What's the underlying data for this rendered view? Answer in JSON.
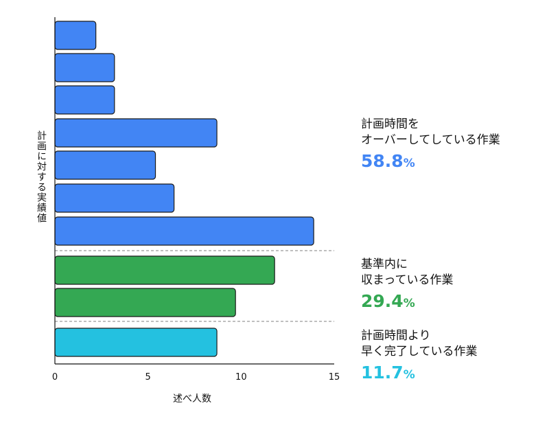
{
  "chart_data": {
    "type": "bar",
    "orientation": "horizontal",
    "xlabel": "述べ人数",
    "ylabel": "計画に対する実績値",
    "xlim": [
      0,
      15
    ],
    "xticks": [
      "0",
      "5",
      "10",
      "15"
    ],
    "grid": false,
    "bars": [
      {
        "value": 2.2,
        "group": "over"
      },
      {
        "value": 3.2,
        "group": "over"
      },
      {
        "value": 3.2,
        "group": "over"
      },
      {
        "value": 8.7,
        "group": "over"
      },
      {
        "value": 5.4,
        "group": "over"
      },
      {
        "value": 6.4,
        "group": "over"
      },
      {
        "value": 13.9,
        "group": "over"
      },
      {
        "value": 11.8,
        "group": "within"
      },
      {
        "value": 9.7,
        "group": "within"
      },
      {
        "value": 8.7,
        "group": "early"
      }
    ],
    "groups": [
      {
        "key": "over",
        "color": "#4285f4",
        "label_lines": [
          "計画時間を",
          "オーバーしてしている作業"
        ],
        "percent": "58.8",
        "percent_sign": "%"
      },
      {
        "key": "within",
        "color": "#34a853",
        "label_lines": [
          "基準内に",
          "収まっている作業"
        ],
        "percent": "29.4",
        "percent_sign": "%"
      },
      {
        "key": "early",
        "color": "#24c1e0",
        "label_lines": [
          "計画時間より",
          "早く完了している作業"
        ],
        "percent": "11.7",
        "percent_sign": "%"
      }
    ]
  }
}
